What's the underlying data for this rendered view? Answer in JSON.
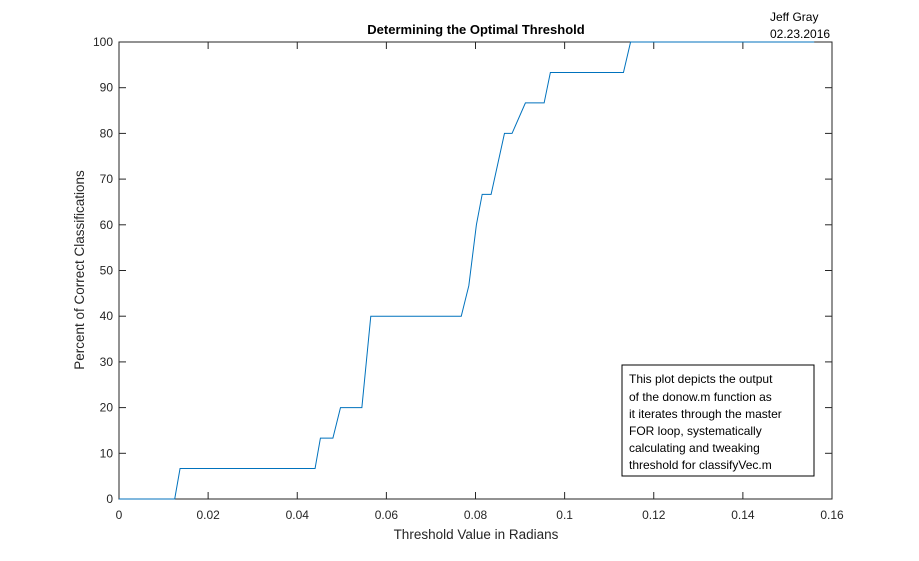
{
  "chart_data": {
    "type": "line",
    "title": "Determining the Optimal Threshold",
    "xlabel": "Threshold Value in Radians",
    "ylabel": "Percent of Correct Classifications",
    "xlim": [
      0,
      0.16
    ],
    "ylim": [
      0,
      100
    ],
    "xticks": [
      0,
      0.02,
      0.04,
      0.06,
      0.08,
      0.1,
      0.12,
      0.14,
      0.16
    ],
    "xtick_labels": [
      "0",
      "0.02",
      "0.04",
      "0.06",
      "0.08",
      "0.1",
      "0.12",
      "0.14",
      "0.16"
    ],
    "yticks": [
      0,
      10,
      20,
      30,
      40,
      50,
      60,
      70,
      80,
      90,
      100
    ],
    "ytick_labels": [
      "0",
      "10",
      "20",
      "30",
      "40",
      "50",
      "60",
      "70",
      "80",
      "90",
      "100"
    ],
    "grid": false,
    "series": [
      {
        "color": "#0072BD",
        "x": [
          0,
          0.0125,
          0.0137,
          0.044,
          0.0452,
          0.048,
          0.0497,
          0.0545,
          0.0565,
          0.0768,
          0.0785,
          0.0802,
          0.0815,
          0.0835,
          0.0865,
          0.0882,
          0.0912,
          0.0922,
          0.0954,
          0.0968,
          0.0978,
          0.1132,
          0.1148,
          0.156
        ],
        "y": [
          0,
          0,
          6.67,
          6.67,
          13.33,
          13.33,
          20,
          20,
          40,
          40,
          46.67,
          60,
          66.67,
          66.67,
          80,
          80,
          86.67,
          86.67,
          86.67,
          93.33,
          93.33,
          93.33,
          100,
          100
        ]
      }
    ],
    "annotation_box": {
      "lines": [
        "This plot depicts the output",
        "of the donow.m function as",
        "it iterates through the master",
        "FOR loop, systematically",
        "calculating and tweaking",
        "threshold for classifyVec.m"
      ],
      "placement": "bottom-right"
    },
    "signature": {
      "name": "Jeff Gray",
      "date": "02.23.2016"
    }
  }
}
